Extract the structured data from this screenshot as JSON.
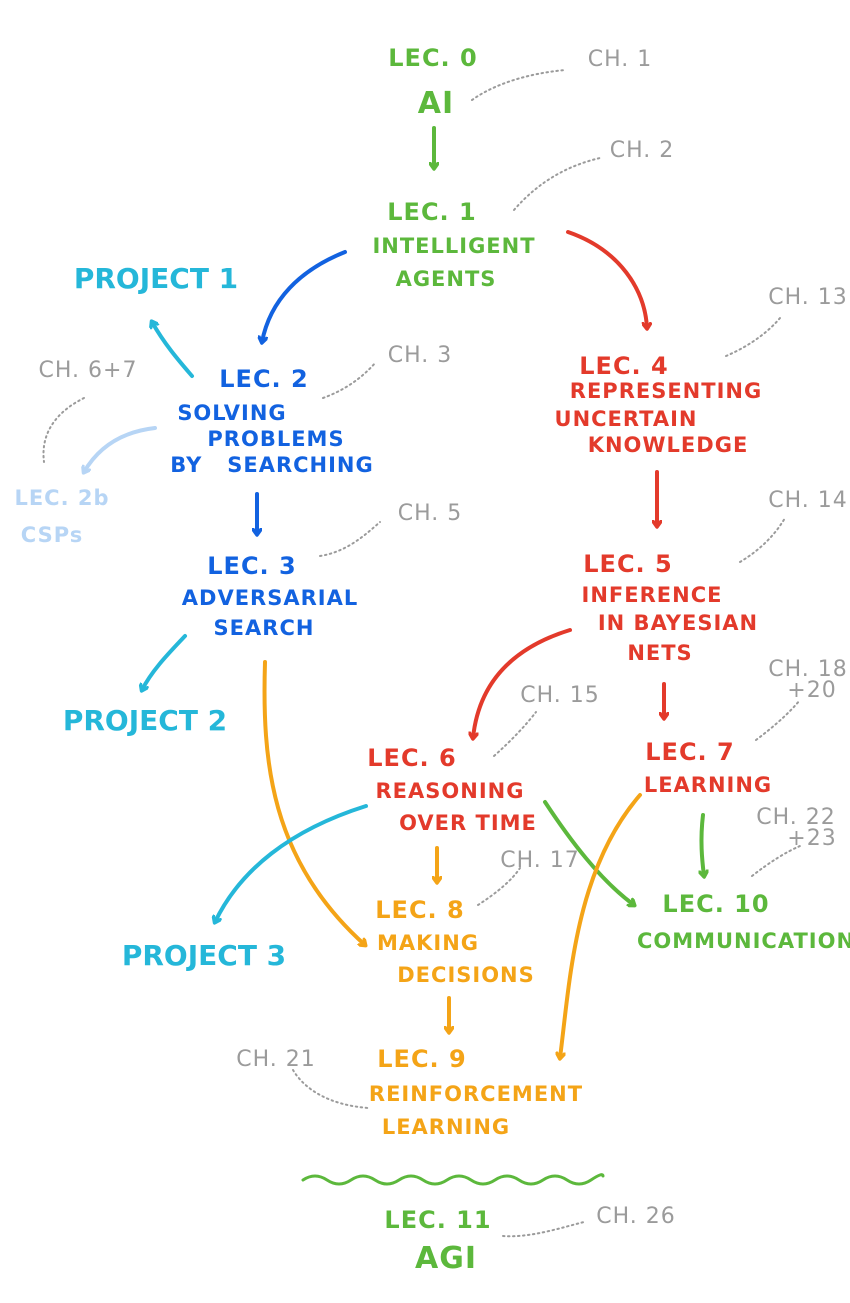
{
  "colors": {
    "green": "#5cb83c",
    "blue": "#1262e0",
    "cyan": "#25b7d9",
    "light_blue": "#b7d5f5",
    "red": "#e33a2b",
    "orange": "#f4a417",
    "gray": "#9b9b9b"
  },
  "nodes": {
    "lec0": {
      "title": "LEC. 0",
      "lines": [
        "AI"
      ]
    },
    "lec1": {
      "title": "LEC. 1",
      "lines": [
        "INTELLIGENT",
        "AGENTS"
      ]
    },
    "lec2": {
      "title": "LEC. 2",
      "lines": [
        "SOLVING",
        "PROBLEMS",
        "BY   SEARCHING"
      ]
    },
    "lec2b": {
      "title": "LEC. 2b",
      "lines": [
        "CSPs"
      ]
    },
    "lec3": {
      "title": "LEC. 3",
      "lines": [
        "ADVERSARIAL",
        "SEARCH"
      ]
    },
    "lec4": {
      "title": "LEC. 4",
      "lines": [
        "REPRESENTING",
        "UNCERTAIN",
        "KNOWLEDGE"
      ]
    },
    "lec5": {
      "title": "LEC. 5",
      "lines": [
        "INFERENCE",
        "IN BAYESIAN",
        "NETS"
      ]
    },
    "lec6": {
      "title": "LEC. 6",
      "lines": [
        "REASONING",
        "OVER TIME"
      ]
    },
    "lec7": {
      "title": "LEC. 7",
      "lines": [
        "LEARNING"
      ]
    },
    "lec8": {
      "title": "LEC. 8",
      "lines": [
        "MAKING",
        "DECISIONS"
      ]
    },
    "lec9": {
      "title": "LEC. 9",
      "lines": [
        "REINFORCEMENT",
        "LEARNING"
      ]
    },
    "lec10": {
      "title": "LEC. 10",
      "lines": [
        "COMMUNICATION"
      ]
    },
    "lec11": {
      "title": "LEC. 11",
      "lines": [
        "AGI"
      ]
    }
  },
  "projects": {
    "p1": "PROJECT 1",
    "p2": "PROJECT 2",
    "p3": "PROJECT 3"
  },
  "chapters": {
    "ch1": "CH. 1",
    "ch2": "CH. 2",
    "ch3": "CH. 3",
    "ch5": "CH. 5",
    "ch67": "CH. 6+7",
    "ch13": "CH. 13",
    "ch14": "CH. 14",
    "ch15": "CH. 15",
    "ch17": "CH. 17",
    "ch18_20": [
      "CH. 18",
      "+20"
    ],
    "ch21": "CH. 21",
    "ch22_23": [
      "CH. 22",
      "+23"
    ],
    "ch26": "CH. 26"
  }
}
